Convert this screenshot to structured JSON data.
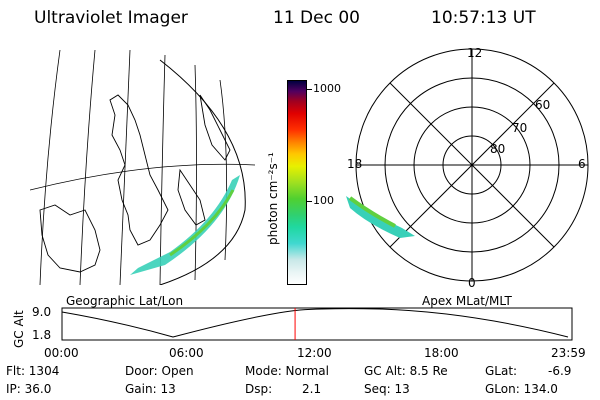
{
  "header": {
    "title": "Ultraviolet Imager",
    "date": "11 Dec 00",
    "time": "10:57:13 UT"
  },
  "geo_panel": {
    "label": "Geographic Lat/Lon"
  },
  "colorbar": {
    "unit_label": "photon cm⁻²s⁻¹",
    "tick_labels": [
      "1000",
      "100"
    ],
    "colors": [
      "#ffffff",
      "#e8f4f4",
      "#c8e8e8",
      "#40d8d0",
      "#20d8a0",
      "#30d070",
      "#50d030",
      "#a0e020",
      "#e8f000",
      "#ffc800",
      "#ff8000",
      "#ff3000",
      "#e00000",
      "#a00020",
      "#500060",
      "#000040"
    ]
  },
  "polar_panel": {
    "label": "Apex MLat/MLT",
    "mlt_labels": [
      "12",
      "18",
      "6",
      "0"
    ],
    "lat_labels": [
      "60",
      "70",
      "80"
    ]
  },
  "timeline": {
    "axis_label": "GC Alt",
    "y_labels": [
      "9.0",
      "1.8"
    ],
    "x_labels": [
      "00:00",
      "06:00",
      "12:00",
      "18:00",
      "23:59"
    ],
    "current_time_fraction": 0.457,
    "marker_color": "#ff0000"
  },
  "info": {
    "flt": "Flt: 1304",
    "ip": "IP: 36.0",
    "door": "Door: Open",
    "gain": "Gain: 13",
    "mode": "Mode: Normal",
    "dsp": "Dsp:",
    "dsp_value": "2.1",
    "gc_alt": "GC Alt: 8.5 Re",
    "seq": "Seq: 13",
    "glat": "GLat:",
    "glat_value": "-6.9",
    "glon": "GLon: 134.0"
  }
}
